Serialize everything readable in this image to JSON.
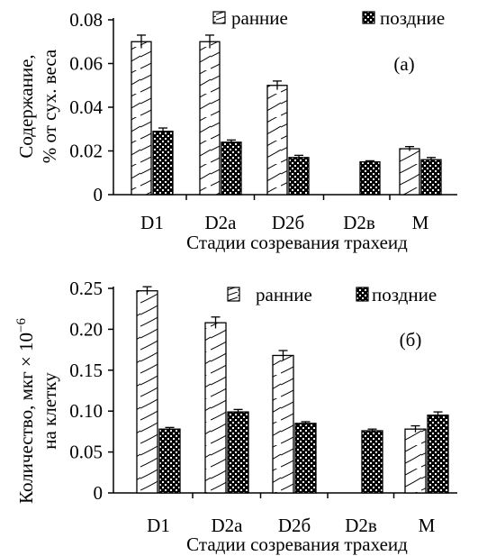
{
  "chart_data": [
    {
      "type": "bar",
      "panel_label": "(а)",
      "categories": [
        "D1",
        "D2а",
        "D2б",
        "D2в",
        "M"
      ],
      "series": [
        {
          "name": "ранние",
          "values": [
            0.07,
            0.07,
            0.05,
            null,
            0.021
          ],
          "errors": [
            0.003,
            0.003,
            0.002,
            null,
            0.001
          ]
        },
        {
          "name": "поздние",
          "values": [
            0.029,
            0.024,
            0.017,
            0.015,
            0.016
          ],
          "errors": [
            0.0015,
            0.001,
            0.001,
            0.0005,
            0.001
          ]
        }
      ],
      "ylim": [
        0,
        0.08
      ],
      "yticks": [
        0,
        0.02,
        0.04,
        0.06,
        0.08
      ],
      "ytick_labels": [
        "0",
        "0.02",
        "0.04",
        "0.06",
        "0.08"
      ],
      "ylabel_lines": [
        "Содержание,",
        "% от сух. веса"
      ],
      "xlabel": "Стадии созревания трахеид",
      "legend_position": "top-right",
      "grid": false
    },
    {
      "type": "bar",
      "panel_label": "(б)",
      "categories": [
        "D1",
        "D2а",
        "D2б",
        "D2в",
        "M"
      ],
      "series": [
        {
          "name": "ранние",
          "values": [
            0.247,
            0.208,
            0.168,
            null,
            0.078
          ],
          "errors": [
            0.005,
            0.007,
            0.006,
            null,
            0.004
          ]
        },
        {
          "name": "поздние",
          "values": [
            0.078,
            0.099,
            0.085,
            0.076,
            0.095
          ],
          "errors": [
            0.002,
            0.003,
            0.002,
            0.002,
            0.004
          ]
        }
      ],
      "ylim": [
        0,
        0.25
      ],
      "yticks": [
        0,
        0.05,
        0.1,
        0.15,
        0.2,
        0.25
      ],
      "ytick_labels": [
        "0",
        "0.05",
        "0.10",
        "0.15",
        "0.20",
        "0.25"
      ],
      "ylabel_lines": [
        "Количество, мкг × 10",
        "на клетку"
      ],
      "ylabel_superscript": "−6",
      "xlabel": "Стадии созревания трахеид",
      "legend_position": "top-right",
      "grid": false
    }
  ],
  "colors": {
    "axis": "#000000",
    "early_fill": "#ffffff",
    "late_fill": "#000000",
    "late_check": "#ffffff"
  }
}
